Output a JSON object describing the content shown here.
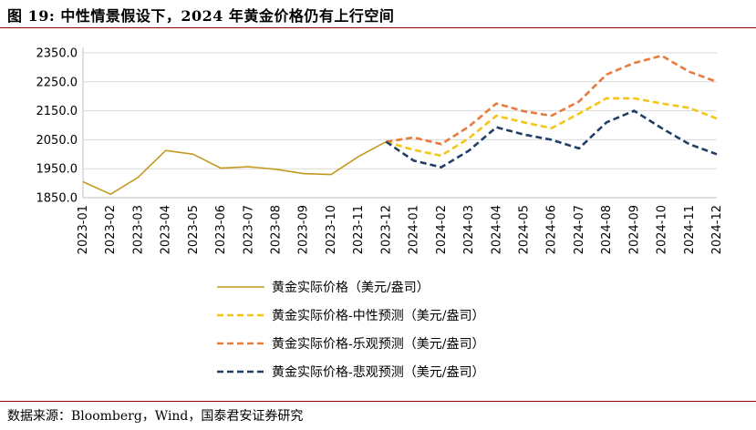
{
  "header": {
    "title": "图 19:  中性情景假设下，2024 年黄金价格仍有上行空间"
  },
  "footer": {
    "source": "数据来源：Bloomberg，Wind，国泰君安证券研究"
  },
  "chart_data": {
    "type": "line",
    "title": "图 19:  中性情景假设下，2024 年黄金价格仍有上行空间",
    "xlabel": "",
    "ylabel": "",
    "ylim": [
      1850.0,
      2350.0
    ],
    "yticks": [
      1850.0,
      1950.0,
      2050.0,
      2150.0,
      2250.0,
      2350.0
    ],
    "ytick_labels": [
      "1850.0",
      "1950.0",
      "2050.0",
      "2150.0",
      "2250.0",
      "2350.0"
    ],
    "grid": true,
    "legend_position": "bottom-center",
    "categories": [
      "2023-01",
      "2023-02",
      "2023-03",
      "2023-04",
      "2023-05",
      "2023-06",
      "2023-07",
      "2023-08",
      "2023-09",
      "2023-10",
      "2023-11",
      "2023-12",
      "2024-01",
      "2024-02",
      "2024-03",
      "2024-04",
      "2024-05",
      "2024-06",
      "2024-07",
      "2024-08",
      "2024-09",
      "2024-10",
      "2024-11",
      "2024-12"
    ],
    "series": [
      {
        "name": "黄金实际价格（美元/盎司）",
        "color": "#c39a1f",
        "dash": "solid",
        "values": [
          1905,
          1862,
          1920,
          2013,
          2000,
          1952,
          1957,
          1948,
          1933,
          1930,
          1992,
          2043,
          null,
          null,
          null,
          null,
          null,
          null,
          null,
          null,
          null,
          null,
          null,
          null
        ]
      },
      {
        "name": "黄金实际价格-中性预测（美元/盎司）",
        "color": "#f5c518",
        "dash": "dashed",
        "values": [
          null,
          null,
          null,
          null,
          null,
          null,
          null,
          null,
          null,
          null,
          null,
          2043,
          2015,
          1995,
          2055,
          2133,
          2110,
          2090,
          2140,
          2193,
          2193,
          2175,
          2160,
          2123
        ]
      },
      {
        "name": "黄金实际价格-乐观预测（美元/盎司）",
        "color": "#e87a3c",
        "dash": "dashed",
        "values": [
          null,
          null,
          null,
          null,
          null,
          null,
          null,
          null,
          null,
          null,
          null,
          2043,
          2058,
          2035,
          2095,
          2175,
          2148,
          2133,
          2182,
          2275,
          2315,
          2340,
          2285,
          2250
        ]
      },
      {
        "name": "黄金实际价格-悲观预测（美元/盎司）",
        "color": "#1f3f66",
        "dash": "dashed",
        "values": [
          null,
          null,
          null,
          null,
          null,
          null,
          null,
          null,
          null,
          null,
          null,
          2043,
          1978,
          1955,
          2012,
          2093,
          2068,
          2050,
          2020,
          2110,
          2150,
          2090,
          2035,
          2000
        ]
      }
    ]
  }
}
